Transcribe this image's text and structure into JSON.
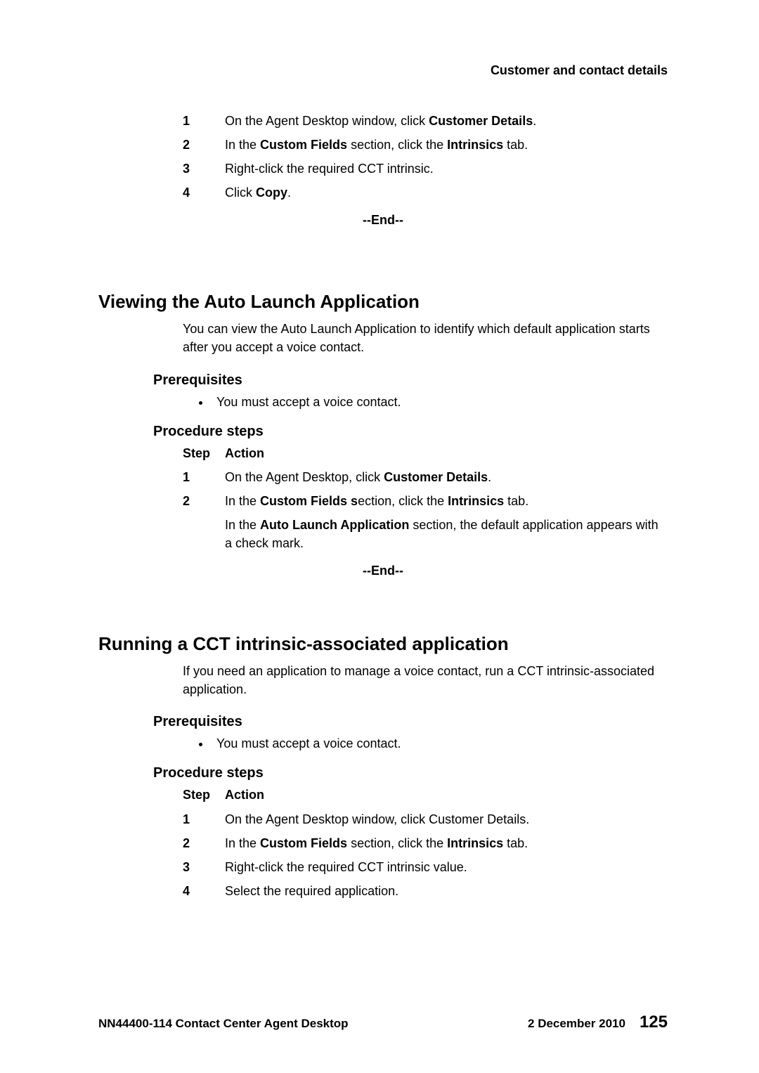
{
  "header": {
    "text": "Customer and contact details"
  },
  "proc1": {
    "steps": [
      {
        "num": "1",
        "pre": "On the Agent Desktop window, click ",
        "b1": "Customer Details",
        "post": "."
      },
      {
        "num": "2",
        "pre": "In the ",
        "b1": "Custom Fields",
        "mid": " section, click the ",
        "b2": "Intrinsics",
        "post": " tab."
      },
      {
        "num": "3",
        "pre": "Right-click the required CCT intrinsic."
      },
      {
        "num": "4",
        "pre": "Click ",
        "b1": "Copy",
        "post": "."
      }
    ],
    "end": "--End--"
  },
  "sec2": {
    "title": "Viewing the Auto Launch Application",
    "intro": "You can view the Auto Launch Application to identify which default application starts after you accept a voice contact.",
    "prereq_title": "Prerequisites",
    "prereq_items": [
      "You must accept a voice contact."
    ],
    "proc_title": "Procedure steps",
    "step_hdr": "Step",
    "action_hdr": "Action",
    "steps": [
      {
        "num": "1",
        "pre": "On the Agent Desktop, click ",
        "b1": "Customer Details",
        "post": "."
      },
      {
        "num": "2",
        "pre": "In the ",
        "b1": "Custom Fields s",
        "mid": "ection, click the ",
        "b2": "Intrinsics",
        "post": " tab."
      }
    ],
    "note": {
      "pre": "In the ",
      "b1": "Auto Launch Application",
      "post": " section, the default application appears with a check mark."
    },
    "end": "--End--"
  },
  "sec3": {
    "title": "Running a CCT intrinsic-associated application",
    "intro": "If you need an application to manage a voice contact, run a CCT intrinsic-associated application.",
    "prereq_title": "Prerequisites",
    "prereq_items": [
      "You must accept a voice contact."
    ],
    "proc_title": "Procedure steps",
    "step_hdr": "Step",
    "action_hdr": "Action",
    "steps": [
      {
        "num": "1",
        "pre": "On the Agent Desktop window, click Customer Details."
      },
      {
        "num": "2",
        "pre": "In the ",
        "b1": "Custom Fields",
        "mid": " section, click the ",
        "b2": "Intrinsics",
        "post": " tab."
      },
      {
        "num": "3",
        "pre": "Right-click the required CCT intrinsic value."
      },
      {
        "num": "4",
        "pre": "Select the required application."
      }
    ]
  },
  "footer": {
    "left": "NN44400-114 Contact Center Agent Desktop",
    "date": "2 December 2010",
    "page": "125"
  }
}
